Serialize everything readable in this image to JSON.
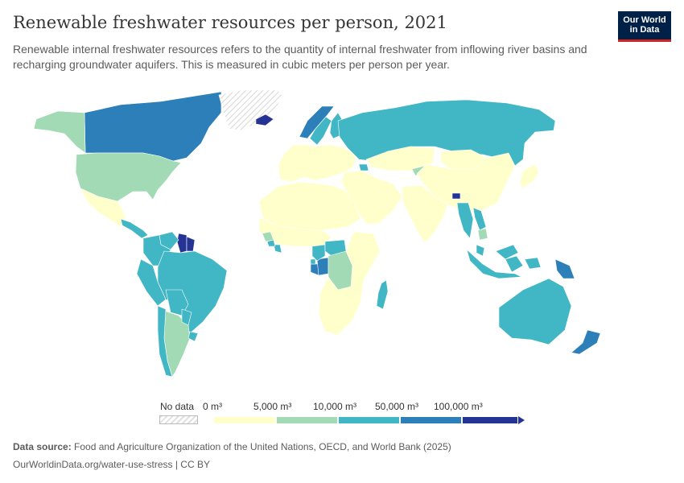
{
  "header": {
    "title": "Renewable freshwater resources per person, 2021",
    "subtitle": "Renewable internal freshwater resources refers to the quantity of internal freshwater from inflowing river basins and recharging groundwater aquifers. This is measured in cubic meters per person per year."
  },
  "logo": {
    "line1": "Our World",
    "line2": "in Data"
  },
  "legend": {
    "no_data_label": "No data",
    "ticks": [
      "0 m³",
      "5,000 m³",
      "10,000 m³",
      "50,000 m³",
      "100,000 m³"
    ],
    "bins": [
      {
        "from": 0,
        "to": 5000,
        "color": "#ffffcc"
      },
      {
        "from": 5000,
        "to": 10000,
        "color": "#a1dab4"
      },
      {
        "from": 10000,
        "to": 50000,
        "color": "#41b6c4"
      },
      {
        "from": 50000,
        "to": 100000,
        "color": "#2c7fb8"
      },
      {
        "from": 100000,
        "to": null,
        "color": "#253494"
      }
    ]
  },
  "footer": {
    "source_label": "Data source:",
    "source_text": "Food and Agriculture Organization of the United Nations, OECD, and World Bank (2025)",
    "url": "OurWorldinData.org/water-use-stress | CC BY"
  },
  "chart_data": {
    "type": "choropleth map",
    "unit": "m³ per person per year",
    "year": 2021,
    "regions": [
      {
        "name": "Canada",
        "bin": 3
      },
      {
        "name": "Alaska",
        "bin": 1
      },
      {
        "name": "Greenland",
        "bin": -1
      },
      {
        "name": "United States",
        "bin": 1
      },
      {
        "name": "Mexico",
        "bin": 0
      },
      {
        "name": "Central America",
        "bin": 2
      },
      {
        "name": "Guyana",
        "bin": 4
      },
      {
        "name": "Suriname",
        "bin": 4
      },
      {
        "name": "Venezuela",
        "bin": 2
      },
      {
        "name": "Colombia",
        "bin": 2
      },
      {
        "name": "Brazil",
        "bin": 2
      },
      {
        "name": "Peru",
        "bin": 2
      },
      {
        "name": "Bolivia",
        "bin": 2
      },
      {
        "name": "Argentina",
        "bin": 1
      },
      {
        "name": "Chile",
        "bin": 2
      },
      {
        "name": "Paraguay",
        "bin": 2
      },
      {
        "name": "Uruguay",
        "bin": 2
      },
      {
        "name": "Iceland",
        "bin": 4
      },
      {
        "name": "Norway",
        "bin": 3
      },
      {
        "name": "Sweden",
        "bin": 2
      },
      {
        "name": "Finland",
        "bin": 2
      },
      {
        "name": "Europe (rest)",
        "bin": 0
      },
      {
        "name": "Russia",
        "bin": 2
      },
      {
        "name": "Kazakhstan",
        "bin": 0
      },
      {
        "name": "Kyrgyzstan",
        "bin": 1
      },
      {
        "name": "Georgia",
        "bin": 2
      },
      {
        "name": "China",
        "bin": 0
      },
      {
        "name": "Mongolia",
        "bin": 0
      },
      {
        "name": "India",
        "bin": 0
      },
      {
        "name": "Bhutan",
        "bin": 4
      },
      {
        "name": "Myanmar",
        "bin": 2
      },
      {
        "name": "Laos",
        "bin": 2
      },
      {
        "name": "Cambodia",
        "bin": 1
      },
      {
        "name": "Malaysia",
        "bin": 2
      },
      {
        "name": "Indonesia",
        "bin": 2
      },
      {
        "name": "Papua New Guinea",
        "bin": 3
      },
      {
        "name": "Japan",
        "bin": 0
      },
      {
        "name": "Middle East",
        "bin": 0
      },
      {
        "name": "North Africa",
        "bin": 0
      },
      {
        "name": "West Africa (most)",
        "bin": 0
      },
      {
        "name": "Liberia",
        "bin": 2
      },
      {
        "name": "Sierra Leone",
        "bin": 2
      },
      {
        "name": "Guinea",
        "bin": 1
      },
      {
        "name": "Gabon",
        "bin": 3
      },
      {
        "name": "Congo",
        "bin": 3
      },
      {
        "name": "Equatorial Guinea",
        "bin": 2
      },
      {
        "name": "Cameroon",
        "bin": 2
      },
      {
        "name": "Central African Republic",
        "bin": 2
      },
      {
        "name": "DR Congo",
        "bin": 1
      },
      {
        "name": "East & Southern Africa",
        "bin": 0
      },
      {
        "name": "Madagascar",
        "bin": 2
      },
      {
        "name": "Australia",
        "bin": 2
      },
      {
        "name": "New Zealand",
        "bin": 3
      }
    ]
  }
}
